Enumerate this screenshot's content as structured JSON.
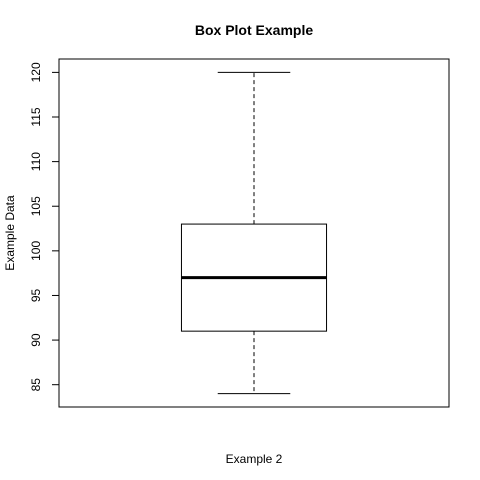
{
  "chart_data": {
    "type": "box",
    "title": "Box Plot Example",
    "xlabel": "Example 2",
    "ylabel": "Example Data",
    "ylim": [
      82.5,
      121.5
    ],
    "yticks": [
      85,
      90,
      95,
      100,
      105,
      110,
      115,
      120
    ],
    "grid": false,
    "boxes": [
      {
        "min": 84,
        "q1": 91,
        "median": 97,
        "q3": 103,
        "max": 120
      }
    ]
  }
}
